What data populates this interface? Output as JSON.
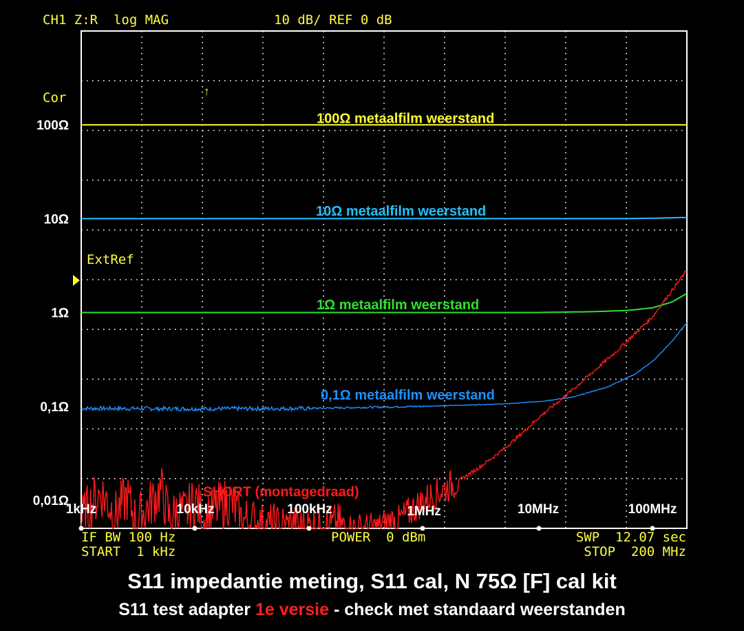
{
  "header": {
    "left": "CH1 Z:R  log MAG",
    "scale": "10 dB/ REF 0 dB"
  },
  "markers": {
    "cor": "Cor",
    "extref": "ExtRef",
    "arrow": "↑"
  },
  "footer": {
    "ifbw": "IF BW 100 Hz",
    "start": "START  1 kHz",
    "power": "POWER  0 dBm",
    "swp": "SWP  12.07 sec",
    "stop": "STOP  200 MHz"
  },
  "caption": {
    "line1": "S11 impedantie meting, S11 cal, N 75Ω [F] cal kit",
    "line2_prefix": "S11 test adapter ",
    "line2_highlight": "1e versie",
    "line2_suffix": " - check met standaard weerstanden"
  },
  "colors": {
    "background": "#000000",
    "grid": "#ffffff",
    "header_text": "#ffff40",
    "r100": "#ffff30",
    "r10": "#20c0ff",
    "r1": "#30e030",
    "r01": "#1e90ff",
    "short": "#ff1a1a"
  },
  "chart_data": {
    "type": "line",
    "x_scale": "log",
    "y_scale": "log",
    "xlim_hz": [
      1000,
      200000000
    ],
    "ylim_ohm": [
      0.005,
      1000
    ],
    "grid": true,
    "x_tick_labels": [
      {
        "hz": 1000,
        "label": "1kHz"
      },
      {
        "hz": 10000,
        "label": "10kHz"
      },
      {
        "hz": 100000,
        "label": "100kHz"
      },
      {
        "hz": 1000000,
        "label": "1MHz"
      },
      {
        "hz": 10000000,
        "label": "10MHz"
      },
      {
        "hz": 100000000,
        "label": "100MHz"
      }
    ],
    "y_tick_labels": [
      {
        "ohm": 100,
        "label": "100Ω"
      },
      {
        "ohm": 10,
        "label": "10Ω"
      },
      {
        "ohm": 1,
        "label": "1Ω"
      },
      {
        "ohm": 0.1,
        "label": "0,1Ω"
      },
      {
        "ohm": 0.01,
        "label": "0,01Ω"
      }
    ],
    "series": [
      {
        "name": "100Ω metaalfilm weerstand",
        "color_key": "r100",
        "label_at": {
          "hz": 300000,
          "ohm": 105
        },
        "x": [
          1000,
          200000000
        ],
        "y": [
          100,
          100
        ]
      },
      {
        "name": "10Ω metaalfilm weerstand",
        "color_key": "r10",
        "label_at": {
          "hz": 300000,
          "ohm": 10.8
        },
        "x": [
          1000,
          1000000,
          10000000,
          50000000,
          100000000,
          200000000
        ],
        "y": [
          10,
          10,
          10,
          10,
          10.1,
          10.3
        ]
      },
      {
        "name": "1Ω metaalfilm weerstand",
        "color_key": "r1",
        "label_at": {
          "hz": 300000,
          "ohm": 1.08
        },
        "x": [
          1000,
          1000000,
          10000000,
          30000000,
          60000000,
          100000000,
          150000000,
          200000000
        ],
        "y": [
          1,
          1,
          1,
          1.02,
          1.05,
          1.12,
          1.3,
          1.6
        ]
      },
      {
        "name": "0,1Ω metaalfilm weerstand",
        "color_key": "r01",
        "label_at": {
          "hz": 300000,
          "ohm": 0.118
        },
        "x": [
          1000,
          10000,
          100000,
          1000000,
          5000000,
          10000000,
          20000000,
          40000000,
          70000000,
          100000000,
          150000000,
          200000000
        ],
        "y": [
          0.095,
          0.094,
          0.095,
          0.1,
          0.106,
          0.112,
          0.125,
          0.16,
          0.22,
          0.3,
          0.5,
          0.78
        ]
      },
      {
        "name": "SHORT (montagedraad)",
        "color_key": "short",
        "label_at": {
          "hz": 9000,
          "ohm": 0.011
        },
        "x": [
          1000,
          1200,
          1500,
          2000,
          2500,
          3000,
          4000,
          5000,
          6000,
          7000,
          8000,
          10000,
          12000,
          15000,
          20000,
          25000,
          30000,
          40000,
          50000,
          70000,
          100000,
          150000,
          200000,
          300000,
          400000,
          500000,
          600000,
          800000,
          1000000,
          1500000,
          2000000,
          3000000,
          5000000,
          7000000,
          10000000,
          20000000,
          50000000,
          100000000,
          200000000
        ],
        "y": [
          0.006,
          0.009,
          0.012,
          0.007,
          0.011,
          0.006,
          0.009,
          0.013,
          0.006,
          0.008,
          0.007,
          0.01,
          0.006,
          0.008,
          0.01,
          0.006,
          0.006,
          0.005,
          0.005,
          0.005,
          0.005,
          0.005,
          0.005,
          0.005,
          0.005,
          0.006,
          0.006,
          0.008,
          0.01,
          0.013,
          0.016,
          0.022,
          0.035,
          0.05,
          0.075,
          0.15,
          0.4,
          0.9,
          2.8
        ]
      }
    ]
  }
}
